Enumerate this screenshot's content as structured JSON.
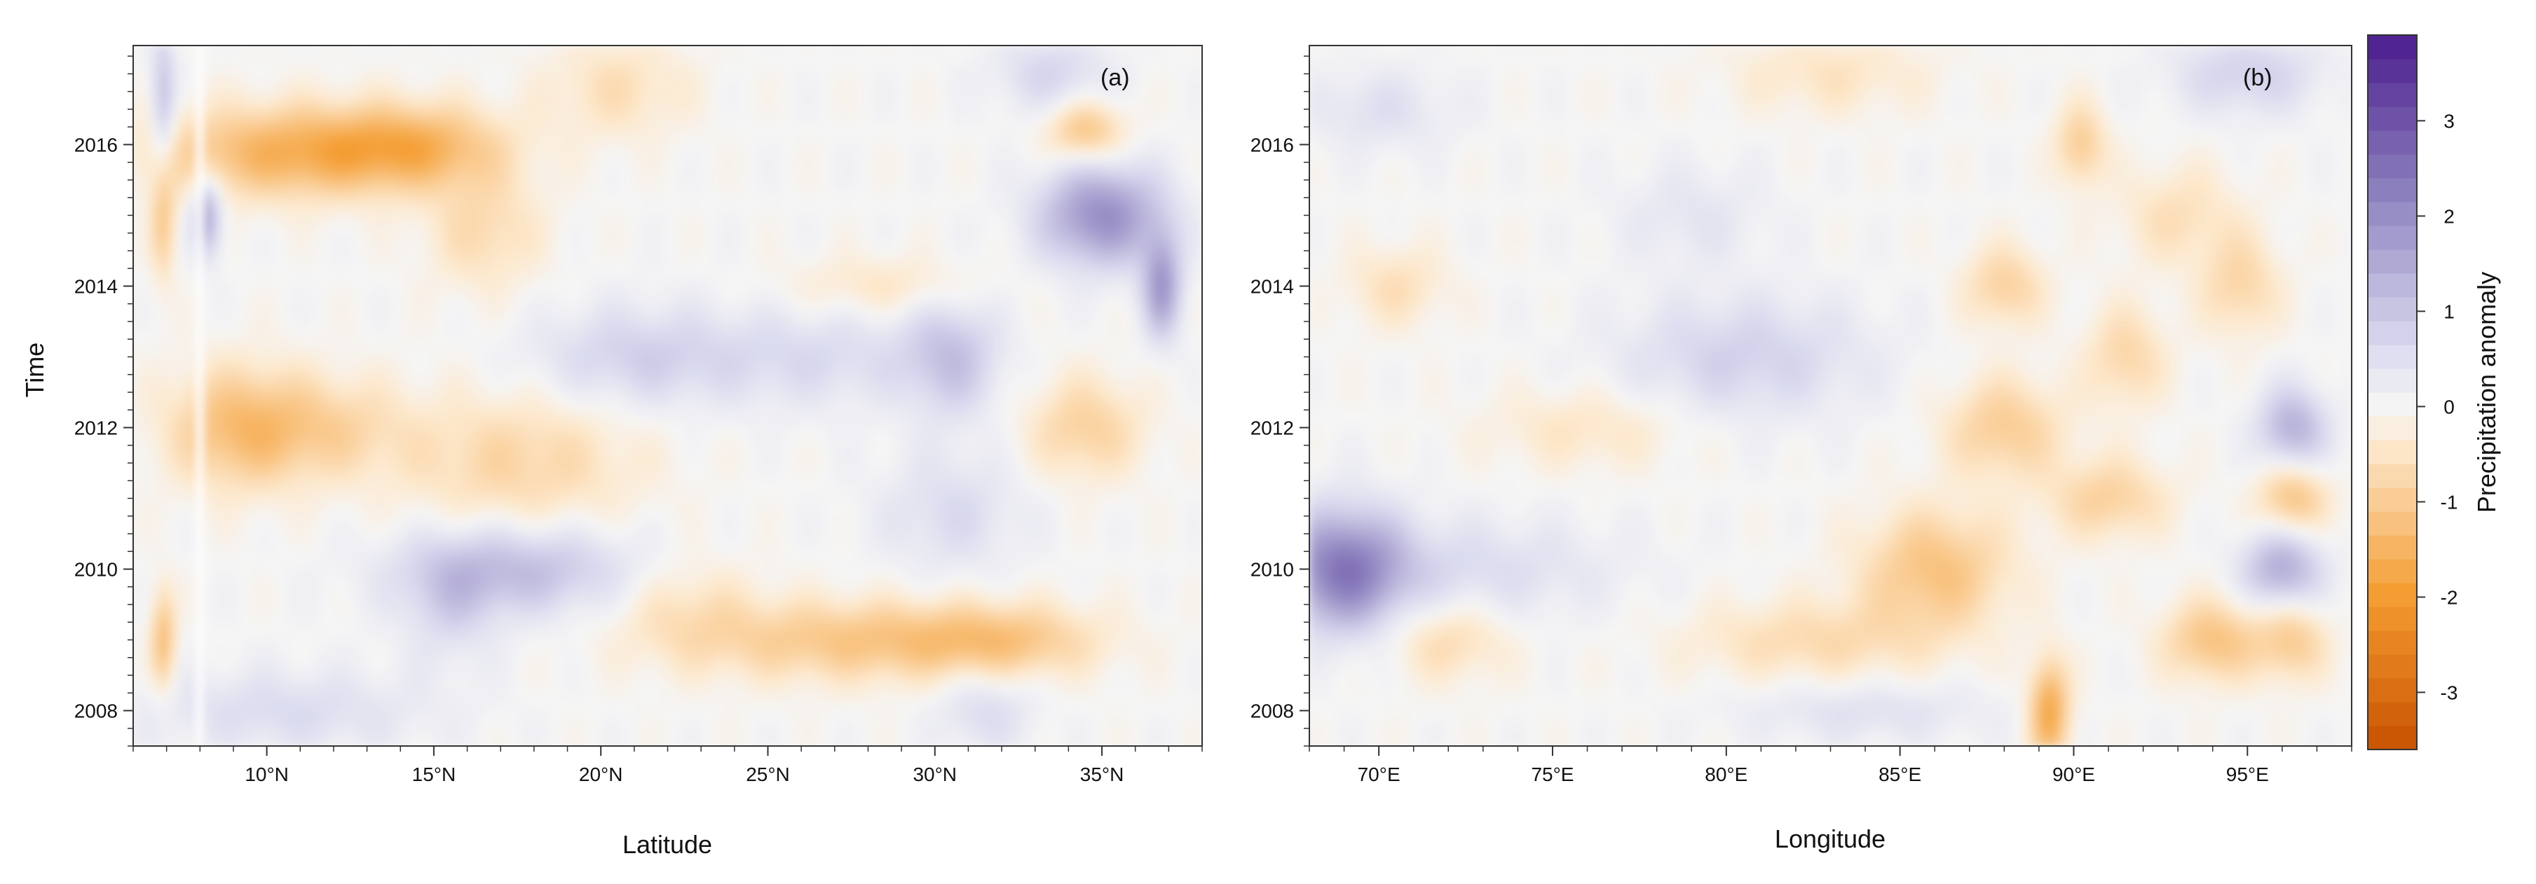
{
  "chart_data": [
    {
      "type": "heatmap",
      "panel_label": "(a)",
      "xlabel": "Latitude",
      "ylabel": "Time",
      "xlim": [
        6,
        38
      ],
      "ylim": [
        2007.5,
        2017.4
      ],
      "x_ticks": [
        {
          "value": 10,
          "label": "10°N"
        },
        {
          "value": 15,
          "label": "15°N"
        },
        {
          "value": 20,
          "label": "20°N"
        },
        {
          "value": 25,
          "label": "25°N"
        },
        {
          "value": 30,
          "label": "30°N"
        },
        {
          "value": 35,
          "label": "35°N"
        }
      ],
      "y_ticks": [
        {
          "value": 2008,
          "label": "2008"
        },
        {
          "value": 2010,
          "label": "2010"
        },
        {
          "value": 2012,
          "label": "2012"
        },
        {
          "value": 2014,
          "label": "2014"
        },
        {
          "value": 2016,
          "label": "2016"
        }
      ],
      "features": [
        {
          "x": 11,
          "y": 2015.9,
          "wx": 3.0,
          "wy": 0.45,
          "value": -1.6
        },
        {
          "x": 14.5,
          "y": 2016.0,
          "wx": 1.8,
          "wy": 0.4,
          "value": -1.0
        },
        {
          "x": 9.2,
          "y": 2012.0,
          "wx": 1.5,
          "wy": 0.6,
          "value": -1.3
        },
        {
          "x": 12,
          "y": 2012.0,
          "wx": 1.6,
          "wy": 0.5,
          "value": -0.7
        },
        {
          "x": 17.5,
          "y": 2011.5,
          "wx": 2.5,
          "wy": 0.7,
          "value": -0.8
        },
        {
          "x": 16.5,
          "y": 2014.8,
          "wx": 1.2,
          "wy": 0.6,
          "value": -0.7
        },
        {
          "x": 21,
          "y": 2013.0,
          "wx": 2.2,
          "wy": 0.5,
          "value": 0.8
        },
        {
          "x": 26.5,
          "y": 2013.0,
          "wx": 2.5,
          "wy": 0.5,
          "value": 0.6
        },
        {
          "x": 30.5,
          "y": 2013.0,
          "wx": 1.0,
          "wy": 0.6,
          "value": 1.0
        },
        {
          "x": 17.5,
          "y": 2010.0,
          "wx": 2.5,
          "wy": 0.45,
          "value": 1.2
        },
        {
          "x": 15.5,
          "y": 2009.5,
          "wx": 1.0,
          "wy": 0.6,
          "value": 0.6
        },
        {
          "x": 27.5,
          "y": 2009.0,
          "wx": 3.5,
          "wy": 0.4,
          "value": -1.1
        },
        {
          "x": 32,
          "y": 2009.0,
          "wx": 2.0,
          "wy": 0.35,
          "value": -0.9
        },
        {
          "x": 35.0,
          "y": 2015.0,
          "wx": 1.3,
          "wy": 0.5,
          "value": 2.0
        },
        {
          "x": 34.5,
          "y": 2016.2,
          "wx": 0.8,
          "wy": 0.3,
          "value": -1.2
        },
        {
          "x": 36.8,
          "y": 2014.0,
          "wx": 0.4,
          "wy": 0.5,
          "value": 1.8
        },
        {
          "x": 34.5,
          "y": 2012.0,
          "wx": 1.2,
          "wy": 0.5,
          "value": -0.9
        },
        {
          "x": 30.5,
          "y": 2010.8,
          "wx": 1.5,
          "wy": 0.6,
          "value": 0.6
        },
        {
          "x": 28.5,
          "y": 2014.0,
          "wx": 2.0,
          "wy": 0.3,
          "value": -0.5
        },
        {
          "x": 10.5,
          "y": 2008.0,
          "wx": 3.0,
          "wy": 0.4,
          "value": 0.6
        },
        {
          "x": 8.2,
          "y": 2015.0,
          "wx": 0.3,
          "wy": 0.4,
          "value": 1.6
        },
        {
          "x": 6.9,
          "y": 2016.5,
          "wx": 0.25,
          "wy": 0.8,
          "value": 1.2
        },
        {
          "x": 6.9,
          "y": 2015.0,
          "wx": 0.25,
          "wy": 0.6,
          "value": -1.2
        },
        {
          "x": 6.9,
          "y": 2009.0,
          "wx": 0.25,
          "wy": 0.5,
          "value": -1.3
        },
        {
          "x": 20.5,
          "y": 2016.8,
          "wx": 1.5,
          "wy": 0.5,
          "value": -0.6
        },
        {
          "x": 22.5,
          "y": 2009.5,
          "wx": 1.5,
          "wy": 0.5,
          "value": -0.5
        },
        {
          "x": 31.5,
          "y": 2008.0,
          "wx": 1.0,
          "wy": 0.4,
          "value": 0.6
        },
        {
          "x": 33.5,
          "y": 2017.0,
          "wx": 1.2,
          "wy": 0.4,
          "value": 0.7
        }
      ]
    },
    {
      "type": "heatmap",
      "panel_label": "(b)",
      "xlabel": "Longitude",
      "ylabel": "",
      "xlim": [
        68,
        98
      ],
      "ylim": [
        2007.5,
        2017.4
      ],
      "x_ticks": [
        {
          "value": 70,
          "label": "70°E"
        },
        {
          "value": 75,
          "label": "75°E"
        },
        {
          "value": 80,
          "label": "80°E"
        },
        {
          "value": 85,
          "label": "85°E"
        },
        {
          "value": 90,
          "label": "90°E"
        },
        {
          "value": 95,
          "label": "95°E"
        }
      ],
      "y_ticks": [
        {
          "value": 2008,
          "label": "2008"
        },
        {
          "value": 2010,
          "label": "2010"
        },
        {
          "value": 2012,
          "label": "2012"
        },
        {
          "value": 2014,
          "label": "2014"
        },
        {
          "value": 2016,
          "label": "2016"
        }
      ],
      "features": [
        {
          "x": 69.0,
          "y": 2010.0,
          "wx": 1.2,
          "wy": 0.6,
          "value": 2.2
        },
        {
          "x": 72.5,
          "y": 2010.0,
          "wx": 3.0,
          "wy": 0.5,
          "value": 0.6
        },
        {
          "x": 80.5,
          "y": 2013.0,
          "wx": 2.5,
          "wy": 0.6,
          "value": 0.8
        },
        {
          "x": 76.0,
          "y": 2012.0,
          "wx": 2.0,
          "wy": 0.4,
          "value": -0.5
        },
        {
          "x": 70.5,
          "y": 2014.0,
          "wx": 1.0,
          "wy": 0.4,
          "value": -0.6
        },
        {
          "x": 72.0,
          "y": 2009.0,
          "wx": 1.2,
          "wy": 0.4,
          "value": -0.7
        },
        {
          "x": 82.5,
          "y": 2009.0,
          "wx": 2.5,
          "wy": 0.4,
          "value": -0.7
        },
        {
          "x": 86.0,
          "y": 2010.0,
          "wx": 1.5,
          "wy": 0.6,
          "value": -1.2
        },
        {
          "x": 88.0,
          "y": 2012.0,
          "wx": 1.2,
          "wy": 0.5,
          "value": -1.0
        },
        {
          "x": 88.0,
          "y": 2014.0,
          "wx": 0.8,
          "wy": 0.4,
          "value": -0.9
        },
        {
          "x": 89.3,
          "y": 2008.0,
          "wx": 0.4,
          "wy": 0.5,
          "value": -1.8
        },
        {
          "x": 90.2,
          "y": 2016.0,
          "wx": 0.5,
          "wy": 0.4,
          "value": -1.0
        },
        {
          "x": 91.0,
          "y": 2011.0,
          "wx": 1.2,
          "wy": 0.4,
          "value": -0.9
        },
        {
          "x": 91.5,
          "y": 2013.0,
          "wx": 0.8,
          "wy": 0.5,
          "value": -0.8
        },
        {
          "x": 94.0,
          "y": 2009.0,
          "wx": 1.0,
          "wy": 0.4,
          "value": -1.2
        },
        {
          "x": 96.0,
          "y": 2010.0,
          "wx": 0.8,
          "wy": 0.4,
          "value": 1.5
        },
        {
          "x": 96.3,
          "y": 2012.0,
          "wx": 0.7,
          "wy": 0.4,
          "value": 1.4
        },
        {
          "x": 96.3,
          "y": 2011.0,
          "wx": 0.7,
          "wy": 0.35,
          "value": -1.2
        },
        {
          "x": 96.3,
          "y": 2009.0,
          "wx": 0.7,
          "wy": 0.4,
          "value": -1.0
        },
        {
          "x": 94.8,
          "y": 2014.0,
          "wx": 0.8,
          "wy": 0.5,
          "value": -0.8
        },
        {
          "x": 95.0,
          "y": 2017.0,
          "wx": 1.5,
          "wy": 0.4,
          "value": 0.8
        },
        {
          "x": 83.0,
          "y": 2017.0,
          "wx": 2.0,
          "wy": 0.4,
          "value": -0.5
        },
        {
          "x": 84.0,
          "y": 2008.0,
          "wx": 2.5,
          "wy": 0.3,
          "value": 0.5
        },
        {
          "x": 70.0,
          "y": 2016.5,
          "wx": 1.5,
          "wy": 0.4,
          "value": 0.5
        },
        {
          "x": 93.0,
          "y": 2015.0,
          "wx": 1.2,
          "wy": 0.5,
          "value": -0.6
        },
        {
          "x": 79.0,
          "y": 2015.0,
          "wx": 1.5,
          "wy": 0.5,
          "value": 0.4
        }
      ]
    }
  ],
  "colorbar": {
    "label": "Precipitation anomaly",
    "range": [
      -3.6,
      3.9
    ],
    "ticks": [
      -3,
      -2,
      -1,
      0,
      1,
      2,
      3
    ],
    "colors": {
      "strong_negative": "#c85000",
      "mid_negative": "#f49c30",
      "weak_negative": "#fde9cf",
      "neutral": "#f5f5f5",
      "weak_positive": "#dcdcf0",
      "mid_positive": "#8f84c0",
      "strong_positive": "#4b1c8e"
    }
  }
}
